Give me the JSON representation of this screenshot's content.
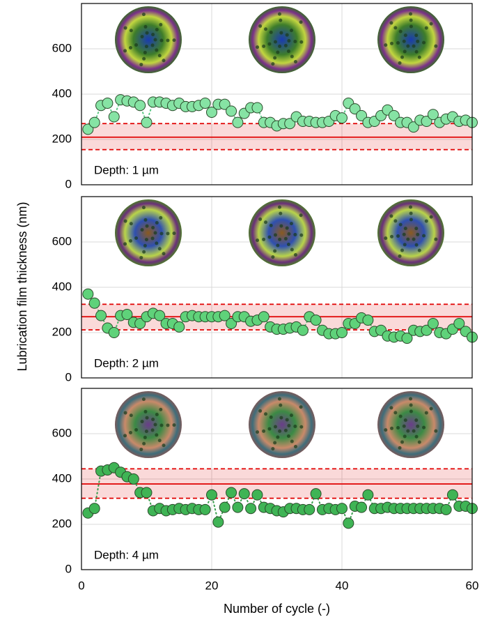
{
  "chart_data": [
    {
      "type": "scatter",
      "annotation": "Depth: 1 µm",
      "color": "#86e3a4",
      "line_color": "#5cc784",
      "x": [
        1,
        2,
        3,
        4,
        5,
        6,
        7,
        8,
        9,
        10,
        11,
        12,
        13,
        14,
        15,
        16,
        17,
        18,
        19,
        20,
        21,
        22,
        23,
        24,
        25,
        26,
        27,
        28,
        29,
        30,
        31,
        32,
        33,
        34,
        35,
        36,
        37,
        38,
        39,
        40,
        41,
        42,
        43,
        44,
        45,
        46,
        47,
        48,
        49,
        50,
        51,
        52,
        53,
        54,
        55,
        56,
        57,
        58,
        59,
        60
      ],
      "values": [
        245,
        275,
        350,
        360,
        300,
        375,
        370,
        365,
        350,
        275,
        365,
        365,
        360,
        350,
        360,
        345,
        345,
        350,
        360,
        320,
        355,
        355,
        325,
        275,
        315,
        340,
        340,
        275,
        275,
        260,
        270,
        270,
        300,
        280,
        280,
        275,
        275,
        280,
        305,
        295,
        360,
        335,
        305,
        275,
        280,
        305,
        330,
        305,
        275,
        275,
        255,
        285,
        280,
        310,
        275,
        290,
        300,
        280,
        285,
        275
      ],
      "reference": {
        "mean": 210,
        "lower": 155,
        "upper": 270,
        "color": "#e00000"
      },
      "xlim": [
        0,
        60
      ],
      "xticks": [
        0,
        20,
        40,
        60
      ],
      "ylim": [
        0,
        800
      ],
      "yticks": [
        0,
        200,
        400,
        600
      ],
      "grid": true
    },
    {
      "type": "scatter",
      "annotation": "Depth: 2 µm",
      "ylabel": "Lubrication film thickness (nm)",
      "color": "#5fd27a",
      "line_color": "#4fb86a",
      "x": [
        1,
        2,
        3,
        4,
        5,
        6,
        7,
        8,
        9,
        10,
        11,
        12,
        13,
        14,
        15,
        16,
        17,
        18,
        19,
        20,
        21,
        22,
        23,
        24,
        25,
        26,
        27,
        28,
        29,
        30,
        31,
        32,
        33,
        34,
        35,
        36,
        37,
        38,
        39,
        40,
        41,
        42,
        43,
        44,
        45,
        46,
        47,
        48,
        49,
        50,
        51,
        52,
        53,
        54,
        55,
        56,
        57,
        58,
        59,
        60
      ],
      "values": [
        370,
        330,
        275,
        220,
        200,
        275,
        280,
        245,
        240,
        270,
        285,
        275,
        240,
        240,
        225,
        270,
        275,
        270,
        270,
        270,
        270,
        275,
        240,
        270,
        270,
        250,
        255,
        270,
        225,
        215,
        215,
        220,
        225,
        210,
        270,
        255,
        210,
        195,
        195,
        200,
        240,
        240,
        265,
        255,
        205,
        210,
        185,
        180,
        185,
        175,
        210,
        205,
        210,
        240,
        200,
        195,
        215,
        240,
        205,
        180
      ],
      "reference": {
        "mean": 270,
        "lower": 212,
        "upper": 325,
        "color": "#e00000"
      },
      "xlim": [
        0,
        60
      ],
      "xticks": [
        0,
        20,
        40,
        60
      ],
      "ylim": [
        0,
        800
      ],
      "yticks": [
        0,
        200,
        400,
        600
      ],
      "grid": true
    },
    {
      "type": "scatter",
      "annotation": "Depth: 4 µm",
      "xlabel": "Number of cycle (-)",
      "color": "#3fb455",
      "line_color": "#3a9e4e",
      "x": [
        1,
        2,
        3,
        4,
        5,
        6,
        7,
        8,
        9,
        10,
        11,
        12,
        13,
        14,
        15,
        16,
        17,
        18,
        19,
        20,
        21,
        22,
        23,
        24,
        25,
        26,
        27,
        28,
        29,
        30,
        31,
        32,
        33,
        34,
        35,
        36,
        37,
        38,
        39,
        40,
        41,
        42,
        43,
        44,
        45,
        46,
        47,
        48,
        49,
        50,
        51,
        52,
        53,
        54,
        55,
        56,
        57,
        58,
        59,
        60
      ],
      "values": [
        250,
        270,
        435,
        440,
        450,
        430,
        410,
        400,
        340,
        340,
        260,
        270,
        260,
        265,
        270,
        265,
        270,
        265,
        265,
        330,
        210,
        275,
        340,
        275,
        335,
        270,
        330,
        275,
        270,
        260,
        255,
        270,
        270,
        265,
        265,
        335,
        265,
        270,
        265,
        270,
        205,
        280,
        275,
        330,
        270,
        270,
        275,
        270,
        270,
        270,
        270,
        270,
        270,
        270,
        270,
        265,
        330,
        280,
        280,
        270
      ],
      "reference": {
        "mean": 378,
        "lower": 315,
        "upper": 445,
        "color": "#e00000"
      },
      "xlim": [
        0,
        60
      ],
      "xticks": [
        0,
        20,
        40,
        60
      ],
      "ylim": [
        0,
        800
      ],
      "yticks": [
        0,
        200,
        400,
        600
      ],
      "grid": true
    }
  ]
}
